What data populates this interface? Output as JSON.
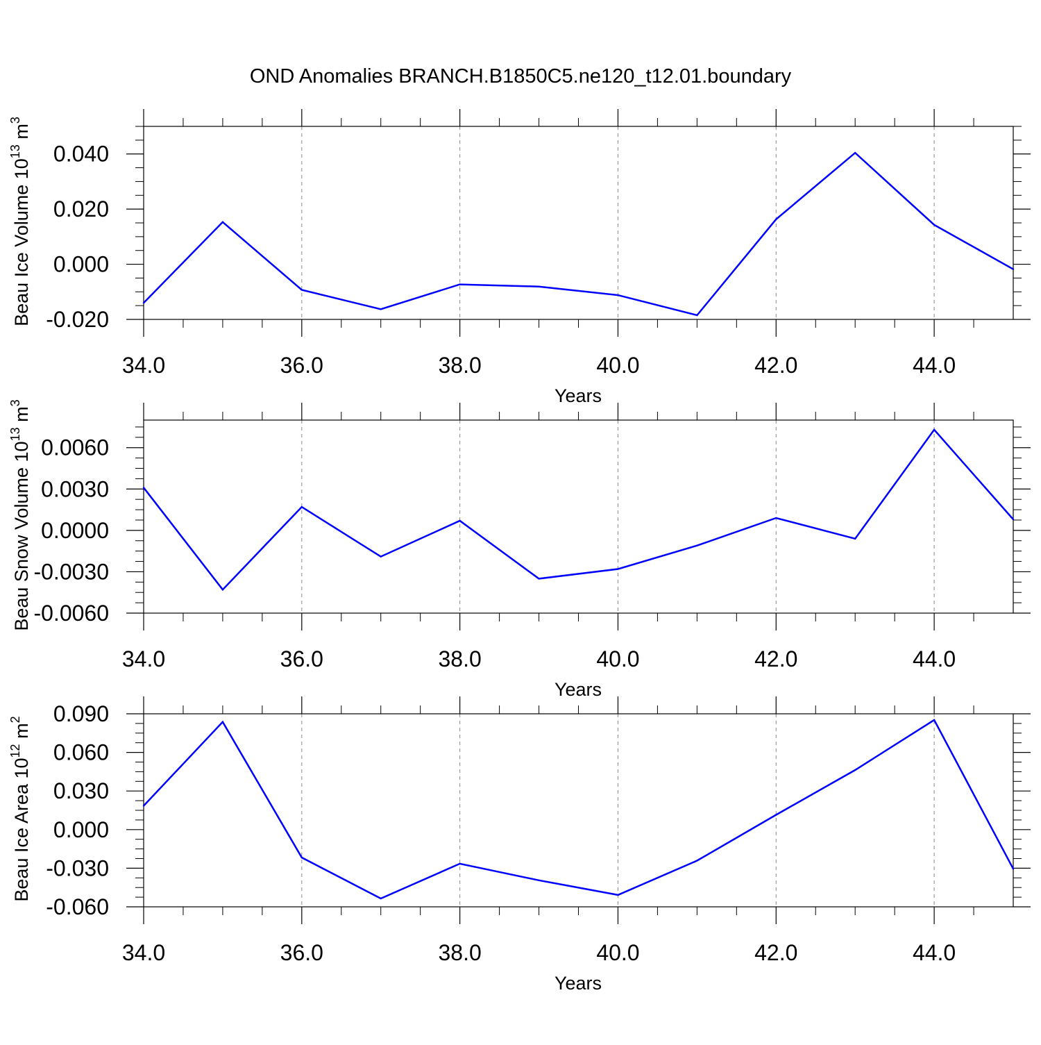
{
  "title": "OND Anomalies BRANCH.B1850C5.ne120_t12.01.boundary",
  "chart_data": [
    {
      "type": "line",
      "ylabel": {
        "text": "Beau Ice Volume 10",
        "sup": "13",
        "unit": " m",
        "unit_sup": "3"
      },
      "xlabel": "Years",
      "xlim": [
        34,
        45
      ],
      "ylim": [
        -0.02,
        0.05
      ],
      "xticks": [
        34,
        36,
        38,
        40,
        42,
        44
      ],
      "xtick_labels": [
        "34.0",
        "36.0",
        "38.0",
        "40.0",
        "42.0",
        "44.0"
      ],
      "yticks": [
        -0.02,
        0.0,
        0.02,
        0.04
      ],
      "ytick_labels": [
        "-0.020",
        "0.000",
        "0.020",
        "0.040"
      ],
      "grid": "vertical dashed at major x ticks",
      "series": [
        {
          "color": "#0000ff",
          "x": [
            34,
            35,
            36,
            37,
            38,
            39,
            40,
            41,
            42,
            43,
            44,
            45
          ],
          "values": [
            -0.014,
            0.0153,
            -0.0093,
            -0.0163,
            -0.0073,
            -0.0081,
            -0.0112,
            -0.0185,
            0.0163,
            0.0404,
            0.0143,
            -0.0018
          ]
        }
      ]
    },
    {
      "type": "line",
      "ylabel": {
        "text": "Beau Snow Volume 10",
        "sup": "13",
        "unit": " m",
        "unit_sup": "3"
      },
      "xlabel": "Years",
      "xlim": [
        34,
        45
      ],
      "ylim": [
        -0.006,
        0.008
      ],
      "xticks": [
        34,
        36,
        38,
        40,
        42,
        44
      ],
      "xtick_labels": [
        "34.0",
        "36.0",
        "38.0",
        "40.0",
        "42.0",
        "44.0"
      ],
      "yticks": [
        -0.006,
        -0.003,
        0.0,
        0.003,
        0.006
      ],
      "ytick_labels": [
        "-0.0060",
        "-0.0030",
        "0.0000",
        "0.0030",
        "0.0060"
      ],
      "grid": "vertical dashed at major x ticks",
      "series": [
        {
          "color": "#0000ff",
          "x": [
            34,
            35,
            36,
            37,
            38,
            39,
            40,
            41,
            42,
            43,
            44,
            45
          ],
          "values": [
            0.0031,
            -0.0043,
            0.0017,
            -0.0019,
            0.0007,
            -0.0035,
            -0.0028,
            -0.0011,
            0.0009,
            -0.0006,
            0.0073,
            0.0008
          ]
        }
      ]
    },
    {
      "type": "line",
      "ylabel": {
        "text": "Beau Ice Area 10",
        "sup": "12",
        "unit": " m",
        "unit_sup": "2"
      },
      "xlabel": "Years",
      "xlim": [
        34,
        45
      ],
      "ylim": [
        -0.06,
        0.09
      ],
      "xticks": [
        34,
        36,
        38,
        40,
        42,
        44
      ],
      "xtick_labels": [
        "34.0",
        "36.0",
        "38.0",
        "40.0",
        "42.0",
        "44.0"
      ],
      "yticks": [
        -0.06,
        -0.03,
        0.0,
        0.03,
        0.06,
        0.09
      ],
      "ytick_labels": [
        "-0.060",
        "-0.030",
        "0.000",
        "0.030",
        "0.060",
        "0.090"
      ],
      "grid": "vertical dashed at major x ticks",
      "series": [
        {
          "color": "#0000ff",
          "x": [
            34,
            35,
            36,
            37,
            38,
            39,
            40,
            41,
            42,
            43,
            44,
            45
          ],
          "values": [
            0.0185,
            0.0837,
            -0.0217,
            -0.0535,
            -0.0265,
            -0.0394,
            -0.0508,
            -0.0241,
            0.0115,
            0.0463,
            0.0852,
            -0.0305
          ]
        }
      ]
    }
  ]
}
